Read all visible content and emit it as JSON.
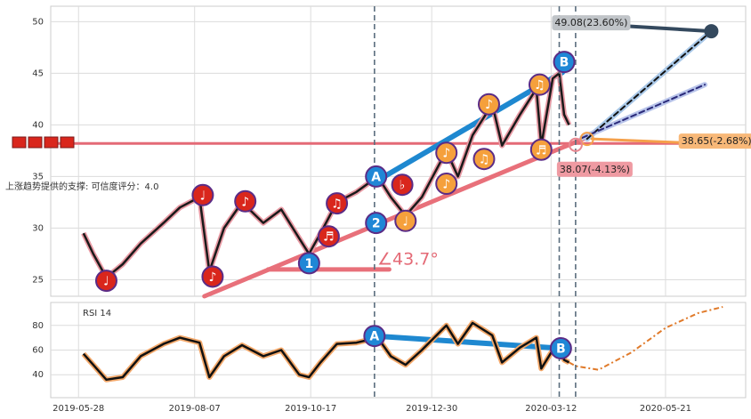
{
  "chart_data": [
    {
      "type": "line",
      "xlim": [
        "2019-05-11",
        "2020-07-09"
      ],
      "ylim": [
        23.4,
        51.5
      ],
      "yticks": [
        25,
        30,
        35,
        40,
        45,
        50
      ],
      "grid": true,
      "x": [
        "2019-05-31",
        "2019-06-06",
        "2019-06-14",
        "2019-06-24",
        "2019-07-05",
        "2019-07-19",
        "2019-07-29",
        "2019-08-10",
        "2019-08-16",
        "2019-08-25",
        "2019-09-05",
        "2019-09-18",
        "2019-09-29",
        "2019-10-10",
        "2019-10-16",
        "2019-10-23",
        "2019-11-02",
        "2019-11-14",
        "2019-11-27",
        "2019-12-05",
        "2019-12-14",
        "2019-12-24",
        "2020-01-08",
        "2020-01-15",
        "2020-01-24",
        "2020-02-05",
        "2020-02-11",
        "2020-02-22",
        "2020-03-03",
        "2020-03-06",
        "2020-03-13",
        "2020-03-17",
        "2020-03-20",
        "2020-03-23"
      ],
      "values": [
        29.5,
        27.5,
        25.2,
        26.5,
        28.5,
        30.5,
        32,
        33,
        25.8,
        30,
        32.5,
        30.5,
        31.8,
        29,
        27.5,
        29.5,
        32.5,
        33.5,
        35,
        33,
        31.2,
        33,
        37.5,
        35,
        39,
        42,
        38,
        41,
        43.5,
        38,
        44.5,
        45,
        41,
        40
      ],
      "color": "#1a1a1a",
      "halo_color": "#e89aa4",
      "hline": 38.2,
      "hline_color": "#e46a76",
      "vlines": [
        "2019-11-25",
        "2020-03-17",
        "2020-03-27"
      ],
      "trendlines": [
        {
          "points": [
            [
              "2019-08-13",
              23.4
            ],
            [
              "2020-04-03",
              38.8
            ]
          ],
          "color": "#e8707a",
          "width": 5
        },
        {
          "points": [
            [
              "2019-09-21",
              26.0
            ],
            [
              "2019-12-04",
              26.0
            ]
          ],
          "color": "#e8707a",
          "width": 5
        },
        {
          "points": [
            [
              "2019-12-01",
              35.0
            ],
            [
              "2020-03-19",
              45.1
            ]
          ],
          "color": "#1e88d0",
          "width": 6
        },
        {
          "points": [
            [
              "2020-04-03",
              38.65
            ],
            [
              "2020-06-18",
              49.08
            ]
          ],
          "color": "#a9c8e8",
          "width": 6
        },
        {
          "points": [
            [
              "2020-03-31",
              38.75
            ],
            [
              "2020-06-14",
              43.9
            ]
          ],
          "color": "#b8c4ea",
          "width": 6
        },
        {
          "points": [
            [
              "2020-04-03",
              38.65
            ],
            [
              "2020-06-18",
              49.08
            ]
          ],
          "color": "#111111",
          "width": 2,
          "dash": true
        },
        {
          "points": [
            [
              "2020-03-31",
              38.75
            ],
            [
              "2020-06-14",
              43.9
            ]
          ],
          "color": "#2a2a7a",
          "width": 2,
          "dash": true
        },
        {
          "points": [
            [
              "2020-04-24",
              49.6
            ],
            [
              "2020-06-18",
              49.08
            ]
          ],
          "color": "#34495e",
          "width": 4
        },
        {
          "points": [
            [
              "2020-05-30",
              38.3
            ],
            [
              "2020-04-06",
              38.65
            ]
          ],
          "color": "#f5a04a",
          "width": 3
        }
      ],
      "markers": [
        {
          "date": "2019-06-14",
          "value": 24.9,
          "label": "♩",
          "color": "#d9261c"
        },
        {
          "date": "2019-08-12",
          "value": 33.2,
          "label": "♩",
          "color": "#d9261c"
        },
        {
          "date": "2019-08-18",
          "value": 25.3,
          "label": "♪",
          "color": "#d9261c"
        },
        {
          "date": "2019-09-07",
          "value": 32.6,
          "label": "♪",
          "color": "#d9261c"
        },
        {
          "date": "2019-11-02",
          "value": 32.4,
          "label": "♫",
          "color": "#d9261c"
        },
        {
          "date": "2019-10-28",
          "value": 29.2,
          "label": "♬",
          "color": "#d9261c"
        },
        {
          "date": "2019-12-12",
          "value": 34.2,
          "label": "♭",
          "color": "#d9261c"
        },
        {
          "date": "2019-12-14",
          "value": 30.7,
          "label": "♩",
          "color": "#f5a03c"
        },
        {
          "date": "2020-01-08",
          "value": 37.3,
          "label": "♪",
          "color": "#f5a03c"
        },
        {
          "date": "2020-01-08",
          "value": 34.3,
          "label": "♪",
          "color": "#f5a03c"
        },
        {
          "date": "2020-01-31",
          "value": 36.7,
          "label": "♫",
          "color": "#f5a03c"
        },
        {
          "date": "2020-02-03",
          "value": 42.0,
          "label": "♪",
          "color": "#f5a03c"
        },
        {
          "date": "2020-03-05",
          "value": 43.9,
          "label": "♫",
          "color": "#f5a03c"
        },
        {
          "date": "2020-03-06",
          "value": 37.6,
          "label": "♬",
          "color": "#f5a03c"
        },
        {
          "date": "2019-10-16",
          "value": 26.6,
          "label": "1",
          "color": "#1f87d6"
        },
        {
          "date": "2019-11-26",
          "value": 30.5,
          "label": "2",
          "color": "#1f87d6"
        },
        {
          "date": "2019-11-26",
          "value": 35.0,
          "label": "A",
          "color": "#1f87d6"
        },
        {
          "date": "2020-03-20",
          "value": 46.1,
          "label": "B",
          "color": "#1f87d6"
        }
      ],
      "targets": [
        {
          "date": "2020-06-18",
          "value": 49.08,
          "label": "49.08(23.60%)",
          "color": "#34495e",
          "box": "#c0c4c8"
        },
        {
          "date": "2020-04-03",
          "value": 38.65,
          "label": "38.65(-2.68%)",
          "color": "#f5a04a",
          "box": "#f8b878"
        },
        {
          "date": "2020-03-27",
          "value": 38.07,
          "label": "38.07(-4.13%)",
          "color": "#e88790",
          "box": "#ef9aa2"
        }
      ],
      "angle_label": "∠43.7°",
      "support_label": "上涨趋势提供的支撑: 可信度评分：4.0"
    },
    {
      "type": "line",
      "title": "RSI 14",
      "xlim": [
        "2019-05-11",
        "2020-07-09"
      ],
      "ylim": [
        21.4,
        98.6
      ],
      "yticks": [
        40,
        60,
        80
      ],
      "grid": true,
      "xticks": [
        "2019-05-28",
        "2019-08-07",
        "2019-10-17",
        "2019-12-30",
        "2020-03-12",
        "2020-05-21"
      ],
      "x": [
        "2019-05-31",
        "2019-06-06",
        "2019-06-14",
        "2019-06-24",
        "2019-07-05",
        "2019-07-19",
        "2019-07-29",
        "2019-08-10",
        "2019-08-16",
        "2019-08-25",
        "2019-09-05",
        "2019-09-18",
        "2019-09-29",
        "2019-10-10",
        "2019-10-16",
        "2019-10-23",
        "2019-11-02",
        "2019-11-14",
        "2019-11-27",
        "2019-12-05",
        "2019-12-14",
        "2019-12-24",
        "2020-01-08",
        "2020-01-15",
        "2020-01-24",
        "2020-02-05",
        "2020-02-11",
        "2020-02-22",
        "2020-03-03",
        "2020-03-06",
        "2020-03-13",
        "2020-03-17",
        "2020-03-20",
        "2020-03-23"
      ],
      "values": [
        57,
        48,
        36,
        38,
        55,
        65,
        70,
        66,
        38,
        55,
        64,
        55,
        60,
        40,
        38,
        50,
        65,
        66,
        70,
        55,
        48,
        60,
        80,
        65,
        82,
        72,
        50,
        62,
        70,
        45,
        60,
        62,
        52,
        50
      ],
      "color": "#111111",
      "halo_color": "#f3a86a",
      "forecast": {
        "x": [
          "2020-03-23",
          "2020-03-27",
          "2020-04-10",
          "2020-04-30",
          "2020-05-21",
          "2020-06-10",
          "2020-06-25"
        ],
        "values": [
          50,
          47,
          44,
          58,
          78,
          90,
          95
        ],
        "color": "#e07a2a"
      },
      "vlines": [
        "2019-11-25",
        "2020-03-17",
        "2020-03-27"
      ],
      "trendlines": [
        {
          "points": [
            [
              "2019-11-25",
              71.4
            ],
            [
              "2020-03-18",
              61.4
            ]
          ],
          "color": "#1e88d0",
          "width": 6
        }
      ],
      "markers": [
        {
          "date": "2019-11-25",
          "value": 71.4,
          "label": "A",
          "color": "#1f87d6"
        },
        {
          "date": "2020-03-18",
          "value": 61.4,
          "label": "B",
          "color": "#1f87d6"
        }
      ]
    }
  ]
}
